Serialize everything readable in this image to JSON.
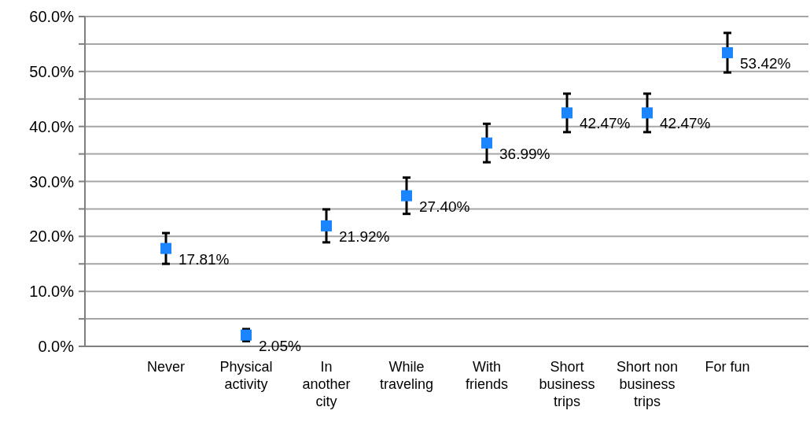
{
  "chart_data": {
    "type": "scatter",
    "categories": [
      "Never",
      "Physical activity",
      "In another city",
      "While traveling",
      "With friends",
      "Short business trips",
      "Short non business trips",
      "For fun"
    ],
    "values": [
      17.81,
      2.05,
      21.92,
      27.4,
      36.99,
      42.47,
      42.47,
      53.42
    ],
    "value_labels": [
      "17.81%",
      "2.05%",
      "21.92%",
      "27.40%",
      "36.99%",
      "42.47%",
      "42.47%",
      "53.42%"
    ],
    "errors": [
      2.8,
      1.1,
      3.0,
      3.3,
      3.5,
      3.5,
      3.5,
      3.6
    ],
    "color": "#1a85ff",
    "marker": "square",
    "ylim": [
      0,
      60
    ],
    "yticks": [
      {
        "value": 0,
        "label": "0.0%"
      },
      {
        "value": 5,
        "label": null
      },
      {
        "value": 10,
        "label": "10.0%"
      },
      {
        "value": 15,
        "label": null
      },
      {
        "value": 20,
        "label": "20.0%"
      },
      {
        "value": 25,
        "label": null
      },
      {
        "value": 30,
        "label": "30.0%"
      },
      {
        "value": 35,
        "label": null
      },
      {
        "value": 40,
        "label": "40.0%"
      },
      {
        "value": 45,
        "label": null
      },
      {
        "value": 50,
        "label": "50.0%"
      },
      {
        "value": 55,
        "label": null
      },
      {
        "value": 60,
        "label": "60.0%"
      }
    ],
    "grid": true
  }
}
